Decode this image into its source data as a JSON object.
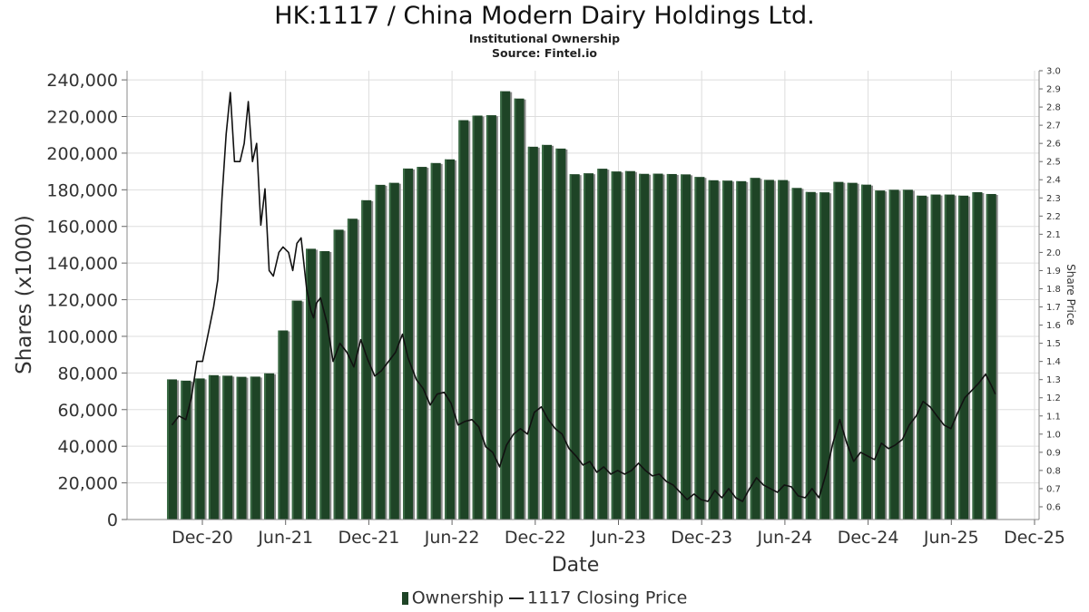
{
  "chart_data": {
    "type": "bar",
    "title": "HK:1117 / China Modern Dairy Holdings Ltd.",
    "subtitles": [
      "Institutional Ownership",
      "Source: Fintel.io"
    ],
    "xlabel": "Date",
    "ylabel": "Shares (x1000)",
    "y2label": "Share Price",
    "ylim": [
      0,
      245000
    ],
    "y2lim": [
      0.53,
      3.0
    ],
    "yticks": [
      "0",
      "20,000",
      "40,000",
      "60,000",
      "80,000",
      "100,000",
      "120,000",
      "140,000",
      "160,000",
      "180,000",
      "200,000",
      "220,000",
      "240,000"
    ],
    "y2ticks": [
      "0.6",
      "0.7",
      "0.8",
      "0.9",
      "1.0",
      "1.1",
      "1.2",
      "1.3",
      "1.4",
      "1.5",
      "1.6",
      "1.7",
      "1.8",
      "1.9",
      "2.0",
      "2.1",
      "2.2",
      "2.3",
      "2.4",
      "2.5",
      "2.6",
      "2.7",
      "2.8",
      "2.9",
      "3.0"
    ],
    "xticks": [
      "Dec-20",
      "Jun-21",
      "Dec-21",
      "Jun-22",
      "Dec-22",
      "Jun-23",
      "Dec-23",
      "Jun-24",
      "Dec-24",
      "Jun-25",
      "Dec-25"
    ],
    "grid": true,
    "legend_position": "bottom",
    "colors": {
      "ownership": "#1e4426",
      "ownership_highlight": "#3a6a44",
      "bar_shadow": "#8a8a8a",
      "price": "#111111",
      "grid": "#dddddd"
    },
    "series": [
      {
        "name": "Ownership",
        "type": "bar",
        "values": [
          76500,
          75800,
          77000,
          78800,
          78500,
          77900,
          78000,
          79800,
          103200,
          119500,
          147800,
          146500,
          158200,
          164200,
          174300,
          182700,
          183800,
          191600,
          192500,
          194600,
          196600,
          218000,
          220500,
          220700,
          233800,
          229800,
          203500,
          204500,
          202500,
          188500,
          189000,
          191500,
          190000,
          190200,
          188700,
          188800,
          188600,
          188400,
          187000,
          185200,
          185000,
          184700,
          186500,
          185400,
          185300,
          181000,
          178800,
          178600,
          184300,
          183800,
          182800,
          179600,
          180000,
          180000,
          176800,
          177400,
          177400,
          176800,
          178700,
          177700
        ]
      },
      {
        "name": "1117 Closing Price",
        "type": "line",
        "points": [
          [
            0,
            1.05
          ],
          [
            0.5,
            1.1
          ],
          [
            1,
            1.08
          ],
          [
            1.4,
            1.2
          ],
          [
            1.8,
            1.4
          ],
          [
            2.2,
            1.4
          ],
          [
            2.6,
            1.55
          ],
          [
            3.0,
            1.7
          ],
          [
            3.3,
            1.85
          ],
          [
            3.6,
            2.3
          ],
          [
            3.9,
            2.65
          ],
          [
            4.2,
            2.88
          ],
          [
            4.5,
            2.5
          ],
          [
            4.9,
            2.5
          ],
          [
            5.2,
            2.6
          ],
          [
            5.5,
            2.83
          ],
          [
            5.8,
            2.5
          ],
          [
            6.1,
            2.6
          ],
          [
            6.4,
            2.15
          ],
          [
            6.7,
            2.35
          ],
          [
            7.0,
            1.9
          ],
          [
            7.3,
            1.87
          ],
          [
            7.7,
            2.0
          ],
          [
            8.0,
            2.03
          ],
          [
            8.4,
            2.0
          ],
          [
            8.7,
            1.9
          ],
          [
            9.0,
            2.05
          ],
          [
            9.3,
            2.08
          ],
          [
            9.7,
            1.8
          ],
          [
            10.0,
            1.68
          ],
          [
            10.2,
            1.64
          ],
          [
            10.4,
            1.72
          ],
          [
            10.7,
            1.75
          ],
          [
            11.2,
            1.6
          ],
          [
            11.6,
            1.4
          ],
          [
            12.1,
            1.5
          ],
          [
            12.6,
            1.45
          ],
          [
            13.1,
            1.37
          ],
          [
            13.6,
            1.52
          ],
          [
            14.1,
            1.41
          ],
          [
            14.6,
            1.32
          ],
          [
            15.1,
            1.35
          ],
          [
            15.6,
            1.4
          ],
          [
            16.1,
            1.45
          ],
          [
            16.6,
            1.55
          ],
          [
            17.0,
            1.42
          ],
          [
            17.6,
            1.3
          ],
          [
            18.1,
            1.25
          ],
          [
            18.6,
            1.16
          ],
          [
            19.1,
            1.22
          ],
          [
            19.6,
            1.23
          ],
          [
            20.1,
            1.17
          ],
          [
            20.6,
            1.05
          ],
          [
            21.1,
            1.07
          ],
          [
            21.6,
            1.08
          ],
          [
            22.1,
            1.04
          ],
          [
            22.6,
            0.93
          ],
          [
            23.1,
            0.9
          ],
          [
            23.6,
            0.82
          ],
          [
            24.1,
            0.94
          ],
          [
            24.6,
            1.0
          ],
          [
            25.1,
            1.03
          ],
          [
            25.6,
            1.0
          ],
          [
            26.1,
            1.12
          ],
          [
            26.6,
            1.15
          ],
          [
            27.1,
            1.08
          ],
          [
            27.6,
            1.03
          ],
          [
            28.1,
            1.0
          ],
          [
            28.6,
            0.92
          ],
          [
            29.1,
            0.88
          ],
          [
            29.6,
            0.83
          ],
          [
            30.1,
            0.85
          ],
          [
            30.6,
            0.79
          ],
          [
            31.1,
            0.82
          ],
          [
            31.6,
            0.78
          ],
          [
            32.1,
            0.8
          ],
          [
            32.6,
            0.78
          ],
          [
            33.1,
            0.8
          ],
          [
            33.6,
            0.84
          ],
          [
            34.1,
            0.8
          ],
          [
            34.6,
            0.77
          ],
          [
            35.1,
            0.78
          ],
          [
            35.6,
            0.74
          ],
          [
            36.1,
            0.72
          ],
          [
            36.6,
            0.68
          ],
          [
            37.1,
            0.64
          ],
          [
            37.6,
            0.67
          ],
          [
            38.1,
            0.64
          ],
          [
            38.6,
            0.63
          ],
          [
            39.1,
            0.69
          ],
          [
            39.6,
            0.65
          ],
          [
            40.1,
            0.7
          ],
          [
            40.6,
            0.65
          ],
          [
            41.1,
            0.63
          ],
          [
            41.6,
            0.7
          ],
          [
            42.1,
            0.76
          ],
          [
            42.6,
            0.72
          ],
          [
            43.1,
            0.7
          ],
          [
            43.6,
            0.68
          ],
          [
            44.1,
            0.72
          ],
          [
            44.6,
            0.71
          ],
          [
            45.1,
            0.66
          ],
          [
            45.6,
            0.65
          ],
          [
            46.1,
            0.7
          ],
          [
            46.6,
            0.65
          ],
          [
            47.1,
            0.78
          ],
          [
            47.6,
            0.95
          ],
          [
            48.1,
            1.08
          ],
          [
            48.6,
            0.95
          ],
          [
            49.1,
            0.85
          ],
          [
            49.6,
            0.9
          ],
          [
            50.1,
            0.88
          ],
          [
            50.6,
            0.86
          ],
          [
            51.1,
            0.95
          ],
          [
            51.6,
            0.92
          ],
          [
            52.1,
            0.94
          ],
          [
            52.6,
            0.97
          ],
          [
            53.1,
            1.05
          ],
          [
            53.6,
            1.1
          ],
          [
            54.1,
            1.18
          ],
          [
            54.6,
            1.15
          ],
          [
            55.1,
            1.1
          ],
          [
            55.6,
            1.05
          ],
          [
            56.1,
            1.03
          ],
          [
            56.6,
            1.12
          ],
          [
            57.1,
            1.2
          ],
          [
            57.6,
            1.24
          ],
          [
            58.1,
            1.28
          ],
          [
            58.6,
            1.33
          ],
          [
            59.0,
            1.27
          ],
          [
            59.3,
            1.22
          ]
        ]
      }
    ]
  }
}
